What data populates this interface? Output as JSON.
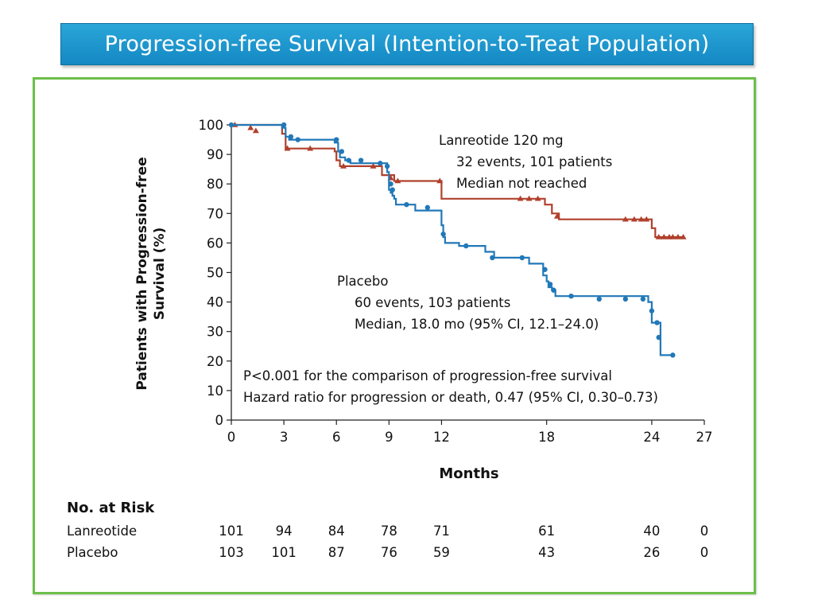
{
  "slide": {
    "title": "Progression-free Survival (Intention-to-Treat Population)"
  },
  "colors": {
    "lanreotide": "#b0402c",
    "placebo": "#2178b8",
    "title_bar": "#1b95cf",
    "panel_border": "#6cbf4a"
  },
  "annotations": {
    "lanreotide_name": "Lanreotide 120 mg",
    "lanreotide_events": "32 events, 101 patients",
    "lanreotide_median": "Median not reached",
    "placebo_name": "Placebo",
    "placebo_events": "60 events, 103 patients",
    "placebo_median": "Median, 18.0 mo (95% CI, 12.1–24.0)",
    "pvalue": "P<0.001 for the comparison of progression-free survival",
    "hazard": "Hazard ratio for progression or death, 0.47 (95% CI, 0.30–0.73)"
  },
  "risk_table": {
    "heading": "No. at Risk",
    "rows": [
      {
        "label": "Lanreotide",
        "values": [
          "101",
          "94",
          "84",
          "78",
          "71",
          "61",
          "40",
          "0"
        ]
      },
      {
        "label": "Placebo",
        "values": [
          "103",
          "101",
          "87",
          "76",
          "59",
          "43",
          "26",
          "0"
        ]
      }
    ],
    "months": [
      0,
      3,
      6,
      9,
      12,
      18,
      24,
      27
    ]
  },
  "chart_data": {
    "type": "line",
    "title": "Progression-free Survival (Intention-to-Treat Population)",
    "xlabel": "Months",
    "ylabel": "Patients with Progression-free Survival (%)",
    "xlim": [
      0,
      27
    ],
    "ylim": [
      0,
      100
    ],
    "xticks": [
      0,
      3,
      6,
      9,
      12,
      18,
      24,
      27
    ],
    "yticks": [
      0,
      10,
      20,
      30,
      40,
      50,
      60,
      70,
      80,
      90,
      100
    ],
    "grid": false,
    "series": [
      {
        "name": "Lanreotide 120 mg",
        "step": [
          [
            0,
            100
          ],
          [
            2.9,
            100
          ],
          [
            2.9,
            97
          ],
          [
            3.1,
            97
          ],
          [
            3.1,
            92
          ],
          [
            5.9,
            92
          ],
          [
            5.9,
            91
          ],
          [
            6.0,
            91
          ],
          [
            6.0,
            88
          ],
          [
            6.2,
            88
          ],
          [
            6.2,
            86
          ],
          [
            8.6,
            86
          ],
          [
            8.6,
            83
          ],
          [
            9.3,
            83
          ],
          [
            9.3,
            81
          ],
          [
            12.0,
            81
          ],
          [
            12.0,
            75
          ],
          [
            17.9,
            75
          ],
          [
            17.9,
            73
          ],
          [
            18.3,
            73
          ],
          [
            18.3,
            70
          ],
          [
            18.7,
            70
          ],
          [
            18.7,
            68
          ],
          [
            24.0,
            68
          ],
          [
            24.0,
            65
          ],
          [
            24.2,
            65
          ],
          [
            24.2,
            62
          ],
          [
            25.8,
            62
          ]
        ],
        "censored": [
          [
            0.2,
            100
          ],
          [
            1.1,
            99
          ],
          [
            1.4,
            98
          ],
          [
            3.2,
            92
          ],
          [
            4.5,
            92
          ],
          [
            6.4,
            86
          ],
          [
            8.1,
            86
          ],
          [
            9.1,
            82
          ],
          [
            9.5,
            81
          ],
          [
            11.9,
            81
          ],
          [
            16.5,
            75
          ],
          [
            17.0,
            75
          ],
          [
            17.5,
            75
          ],
          [
            18.6,
            69
          ],
          [
            22.5,
            68
          ],
          [
            23.0,
            68
          ],
          [
            23.4,
            68
          ],
          [
            23.7,
            68
          ],
          [
            24.4,
            62
          ],
          [
            24.7,
            62
          ],
          [
            25.0,
            62
          ],
          [
            25.2,
            62
          ],
          [
            25.5,
            62
          ],
          [
            25.8,
            62
          ]
        ]
      },
      {
        "name": "Placebo",
        "step": [
          [
            0,
            100
          ],
          [
            2.9,
            100
          ],
          [
            2.9,
            99
          ],
          [
            3.1,
            99
          ],
          [
            3.1,
            96
          ],
          [
            3.3,
            96
          ],
          [
            3.3,
            95
          ],
          [
            5.9,
            95
          ],
          [
            5.9,
            94
          ],
          [
            6.1,
            94
          ],
          [
            6.1,
            91
          ],
          [
            6.2,
            91
          ],
          [
            6.2,
            89
          ],
          [
            6.5,
            89
          ],
          [
            6.5,
            88
          ],
          [
            6.8,
            88
          ],
          [
            6.8,
            87
          ],
          [
            8.9,
            87
          ],
          [
            8.9,
            84
          ],
          [
            9.0,
            84
          ],
          [
            9.0,
            78
          ],
          [
            9.1,
            78
          ],
          [
            9.1,
            77
          ],
          [
            9.2,
            77
          ],
          [
            9.2,
            76
          ],
          [
            9.3,
            76
          ],
          [
            9.3,
            75
          ],
          [
            9.4,
            75
          ],
          [
            9.4,
            73
          ],
          [
            10.5,
            73
          ],
          [
            10.5,
            71
          ],
          [
            12.0,
            71
          ],
          [
            12.0,
            66
          ],
          [
            12.1,
            66
          ],
          [
            12.1,
            62
          ],
          [
            12.2,
            62
          ],
          [
            12.2,
            60
          ],
          [
            13.0,
            60
          ],
          [
            13.0,
            59
          ],
          [
            14.5,
            59
          ],
          [
            14.5,
            57
          ],
          [
            15.0,
            57
          ],
          [
            15.0,
            55
          ],
          [
            17.0,
            55
          ],
          [
            17.0,
            53
          ],
          [
            17.8,
            53
          ],
          [
            17.8,
            49
          ],
          [
            18.0,
            49
          ],
          [
            18.0,
            47
          ],
          [
            18.1,
            47
          ],
          [
            18.1,
            45
          ],
          [
            18.3,
            45
          ],
          [
            18.3,
            44
          ],
          [
            18.5,
            44
          ],
          [
            18.5,
            42
          ],
          [
            23.8,
            42
          ],
          [
            23.8,
            40
          ],
          [
            24.0,
            40
          ],
          [
            24.0,
            33
          ],
          [
            24.5,
            33
          ],
          [
            24.5,
            22
          ],
          [
            25.3,
            22
          ]
        ],
        "censored": [
          [
            0,
            100
          ],
          [
            3.0,
            100
          ],
          [
            3.4,
            96
          ],
          [
            3.8,
            95
          ],
          [
            6.0,
            95
          ],
          [
            6.3,
            91
          ],
          [
            6.7,
            88
          ],
          [
            7.4,
            88
          ],
          [
            8.5,
            87
          ],
          [
            8.9,
            86
          ],
          [
            9.1,
            80
          ],
          [
            9.2,
            78
          ],
          [
            10.0,
            73
          ],
          [
            11.2,
            72
          ],
          [
            12.1,
            63
          ],
          [
            13.4,
            59
          ],
          [
            14.9,
            55
          ],
          [
            16.6,
            55
          ],
          [
            17.9,
            51
          ],
          [
            18.2,
            46
          ],
          [
            18.4,
            44
          ],
          [
            19.4,
            42
          ],
          [
            21.0,
            41
          ],
          [
            22.5,
            41
          ],
          [
            23.5,
            41
          ],
          [
            24.0,
            37
          ],
          [
            24.3,
            33
          ],
          [
            24.4,
            28
          ],
          [
            25.2,
            22
          ]
        ]
      }
    ]
  }
}
